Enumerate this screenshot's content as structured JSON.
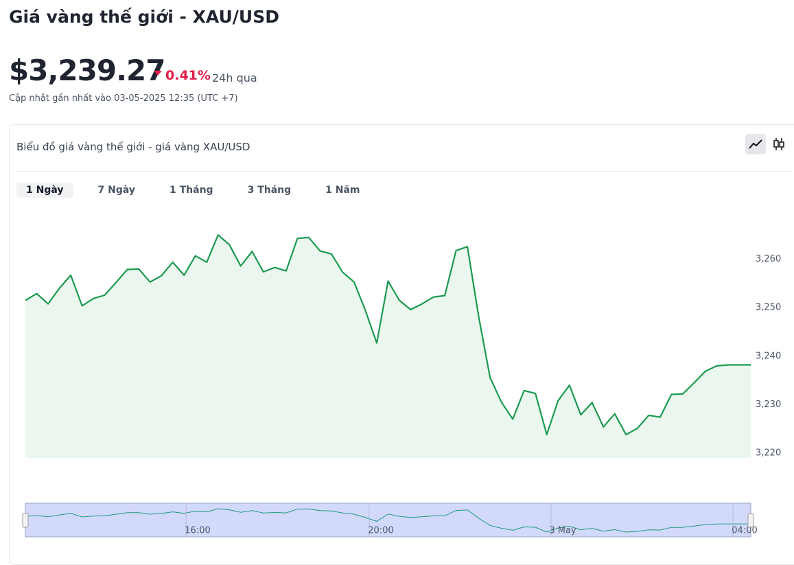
{
  "header": {
    "title": "Giá vàng thế giới - XAU/USD",
    "price": "$3,239.27",
    "change": "0.41%",
    "change_period": "24h qua",
    "updated": "Cập nhật gần nhất vào 03-05-2025 12:35 (UTC +7)"
  },
  "card": {
    "title": "Biểu đồ giá vàng thế giới - giá vàng XAU/USD",
    "tabs": [
      "1 Ngày",
      "7 Ngày",
      "1 Tháng",
      "3 Tháng",
      "1 Năm"
    ],
    "active_tab": 0
  },
  "chart_data": {
    "type": "area",
    "color": "#1a9a4f",
    "fill": "#ebf6ef",
    "values": [
      3251.5,
      3252.9,
      3250.8,
      3254.0,
      3256.7,
      3250.4,
      3251.9,
      3252.6,
      3255.2,
      3257.9,
      3258.0,
      3255.3,
      3256.6,
      3259.4,
      3256.7,
      3260.7,
      3259.4,
      3265.0,
      3263.0,
      3258.6,
      3261.6,
      3257.4,
      3258.3,
      3257.6,
      3264.3,
      3264.5,
      3261.7,
      3261.1,
      3257.3,
      3255.3,
      3249.4,
      3242.7,
      3255.5,
      3251.5,
      3249.6,
      3250.8,
      3252.2,
      3252.5,
      3261.8,
      3262.6,
      3248.1,
      3235.6,
      3230.5,
      3227.0,
      3232.9,
      3232.3,
      3223.8,
      3230.8,
      3234.0,
      3227.9,
      3230.4,
      3225.4,
      3228.1,
      3223.8,
      3225.1,
      3227.8,
      3227.4,
      3232.1,
      3232.2,
      3234.5,
      3236.9,
      3238.0,
      3238.2,
      3238.2,
      3238.2
    ],
    "ylim": [
      3219,
      3271
    ],
    "yticks": [
      {
        "value": 3220,
        "label": "3,220"
      },
      {
        "value": 3230,
        "label": "3,230"
      },
      {
        "value": 3240,
        "label": "3,240"
      },
      {
        "value": 3250,
        "label": "3,250"
      },
      {
        "value": 3260,
        "label": "3,260"
      }
    ],
    "navigator_labels": [
      "16:00",
      "20:00",
      "3 May",
      "04:00"
    ]
  }
}
